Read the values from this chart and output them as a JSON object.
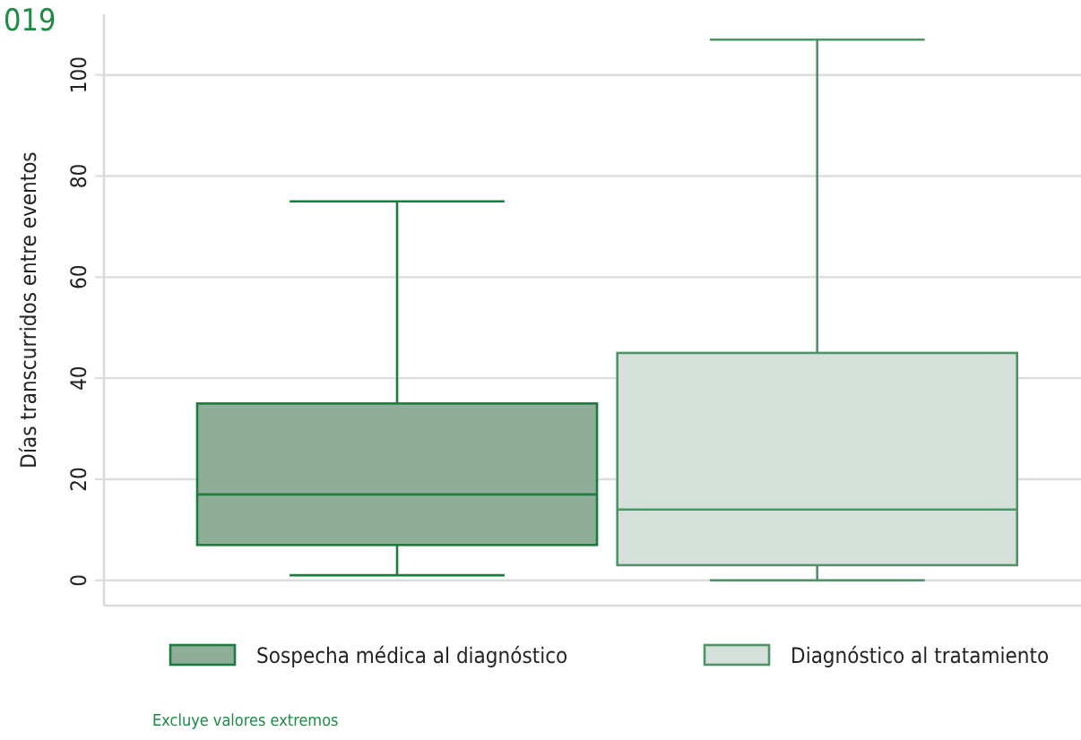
{
  "chart_data": {
    "type": "box",
    "title": "019",
    "ylabel": "Días transcurridos entre eventos",
    "categories": [
      null
    ],
    "series": [
      {
        "name": "Sospecha médica al diagnóstico",
        "color": "#8fae98",
        "boxes": [
          {
            "low": 1,
            "q1": 7,
            "median": 17,
            "q3": 35,
            "high": 75
          }
        ]
      },
      {
        "name": "Diagnóstico al tratamiento",
        "color": "#d5e0da",
        "boxes": [
          {
            "low": 0,
            "q1": 3,
            "median": 14,
            "q3": 45,
            "high": 107
          }
        ]
      }
    ],
    "ylim": [
      -5,
      112
    ],
    "yticks": [
      0,
      20,
      40,
      60,
      80,
      100
    ],
    "grid": "y",
    "legend": "bottom",
    "annotations": [
      "Excluye valores extremos"
    ]
  }
}
